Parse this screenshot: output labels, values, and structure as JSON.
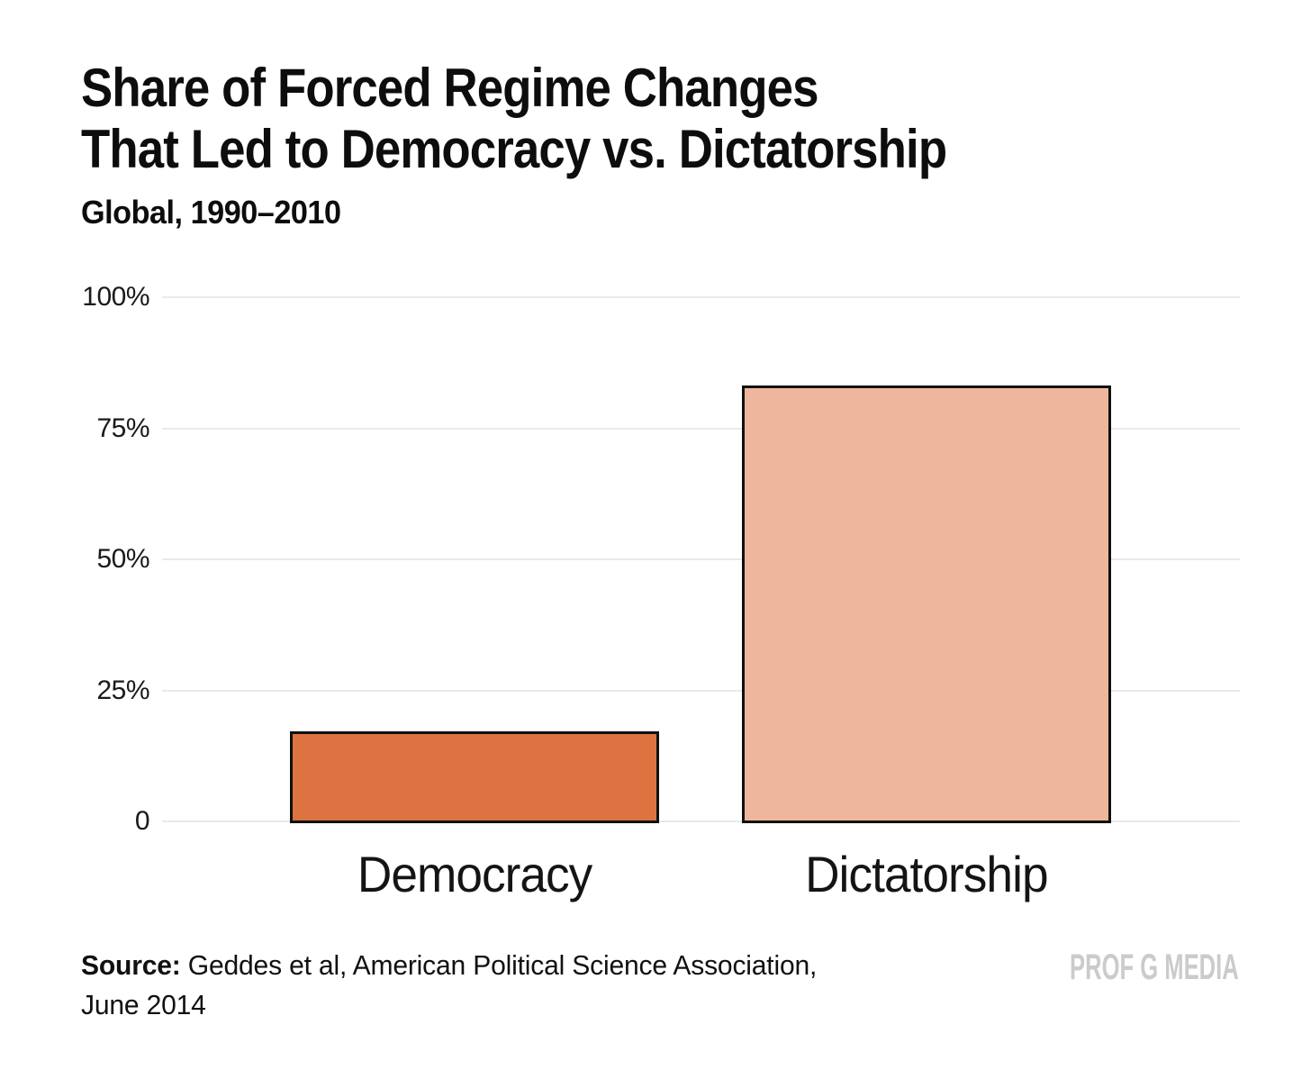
{
  "header": {
    "title_line1": "Share of Forced Regime Changes",
    "title_line2": "That Led to Democracy vs. Dictatorship",
    "subtitle": "Global, 1990–2010"
  },
  "chart_data": {
    "type": "bar",
    "title": "Share of Forced Regime Changes That Led to Democracy vs. Dictatorship",
    "subtitle": "Global, 1990–2010",
    "categories": [
      "Democracy",
      "Dictatorship"
    ],
    "values": [
      17,
      83
    ],
    "xlabel": "",
    "ylabel": "",
    "ylim": [
      0,
      100
    ],
    "yticks": [
      {
        "value": 0,
        "label": "0"
      },
      {
        "value": 25,
        "label": "25%"
      },
      {
        "value": 50,
        "label": "50%"
      },
      {
        "value": 75,
        "label": "75%"
      },
      {
        "value": 100,
        "label": "100%"
      }
    ],
    "grid": "horizontal-only",
    "legend": "none",
    "bar_colors": [
      "#DC7340",
      "#EEB79D"
    ],
    "bar_border_color": "#101010"
  },
  "footer": {
    "source_label": "Source:",
    "source_line1": " Geddes et al, American Political Science Association,",
    "source_line2": "June 2014",
    "watermark": "PROF G MEDIA"
  },
  "colors": {
    "democracy_bar": "#DC7340",
    "dictatorship_bar": "#EEB79D",
    "gridline": "#E9E9E9",
    "watermark_gray": "#CBCBCB",
    "text": "#0F0F0F",
    "background": "#FFFFFF"
  }
}
